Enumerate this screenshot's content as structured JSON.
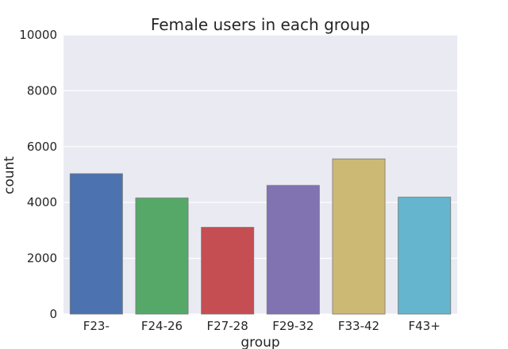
{
  "chart_data": {
    "type": "bar",
    "title": "Female users in each group",
    "xlabel": "group",
    "ylabel": "count",
    "categories": [
      "F23-",
      "F24-26",
      "F27-28",
      "F29-32",
      "F33-42",
      "F43+"
    ],
    "values": [
      5030,
      4160,
      3110,
      4610,
      5560,
      4190
    ],
    "colors": [
      "#4c72b0",
      "#55a868",
      "#c44e52",
      "#8172b2",
      "#ccb974",
      "#64b5cd"
    ],
    "ylim": [
      0,
      10000
    ],
    "yticks": [
      "0",
      "2000",
      "4000",
      "6000",
      "8000",
      "10000"
    ],
    "ytick_values": [
      0,
      2000,
      4000,
      6000,
      8000,
      10000
    ],
    "grid": true,
    "background": "#eaeaf2",
    "grid_color": "#ffffff"
  }
}
